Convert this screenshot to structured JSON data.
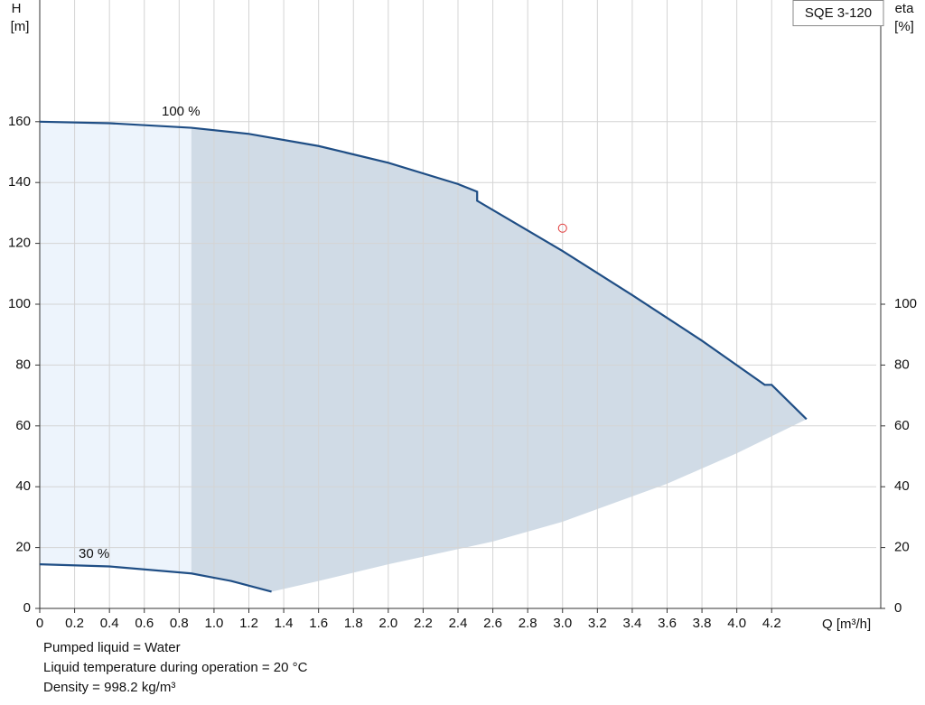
{
  "chart_data": {
    "type": "line",
    "y_label": "H",
    "y_unit": "[m]",
    "y2_label": "eta",
    "y2_unit": "[%]",
    "x_label": "Q [m³/h]",
    "product": "SQE 3-120",
    "xlim": [
      0,
      4.8
    ],
    "xticks": [
      0,
      0.2,
      0.4,
      0.6,
      0.8,
      {
        "value": 1,
        "label": "1.0"
      },
      1.2,
      1.4,
      1.6,
      1.8,
      {
        "value": 2,
        "label": "2.0"
      },
      2.2,
      2.4,
      2.6,
      2.8,
      {
        "value": 3,
        "label": "3.0"
      },
      3.2,
      3.4,
      3.6,
      3.8,
      {
        "value": 4,
        "label": "4.0"
      },
      4.2
    ],
    "ylim": [
      0,
      200
    ],
    "yticks": [
      0,
      20,
      40,
      60,
      80,
      100,
      120,
      140,
      160
    ],
    "y2lim": [
      0,
      200
    ],
    "y2ticks": [
      0,
      20,
      40,
      60,
      80,
      100
    ],
    "grid": true,
    "series": [
      {
        "name": "100 %",
        "color": "#1f4e85",
        "x": [
          0,
          0.4,
          0.87,
          1.2,
          1.6,
          2.0,
          2.4,
          2.51,
          2.51,
          3.0,
          3.4,
          3.8,
          4.16,
          4.2,
          4.4
        ],
        "values": [
          160,
          159.5,
          158,
          156,
          152,
          146.5,
          139.5,
          137,
          134,
          117.5,
          103,
          88,
          73.5,
          73.5,
          62.2
        ]
      },
      {
        "name": "30 %",
        "color": "#1f4e85",
        "x": [
          0,
          0.4,
          0.87,
          1.1,
          1.33
        ],
        "values": [
          14.5,
          13.8,
          11.5,
          9,
          5.5
        ]
      }
    ],
    "area": {
      "split_x": 0.87,
      "light_color": "#edf4fc",
      "color": "#d0dbe6",
      "x": [
        1.33,
        1.6,
        2.0,
        2.6,
        3.0,
        3.6,
        4.0,
        4.4
      ],
      "values": [
        5.5,
        9,
        14.5,
        22,
        28.5,
        41,
        51,
        62.2
      ]
    },
    "operating_point": {
      "x": 3.0,
      "y": 125,
      "color": "#e03a3a"
    },
    "notes": [
      "Pumped liquid = Water",
      "Liquid temperature during operation = 20 °C",
      "Density = 998.2 kg/m³"
    ]
  }
}
